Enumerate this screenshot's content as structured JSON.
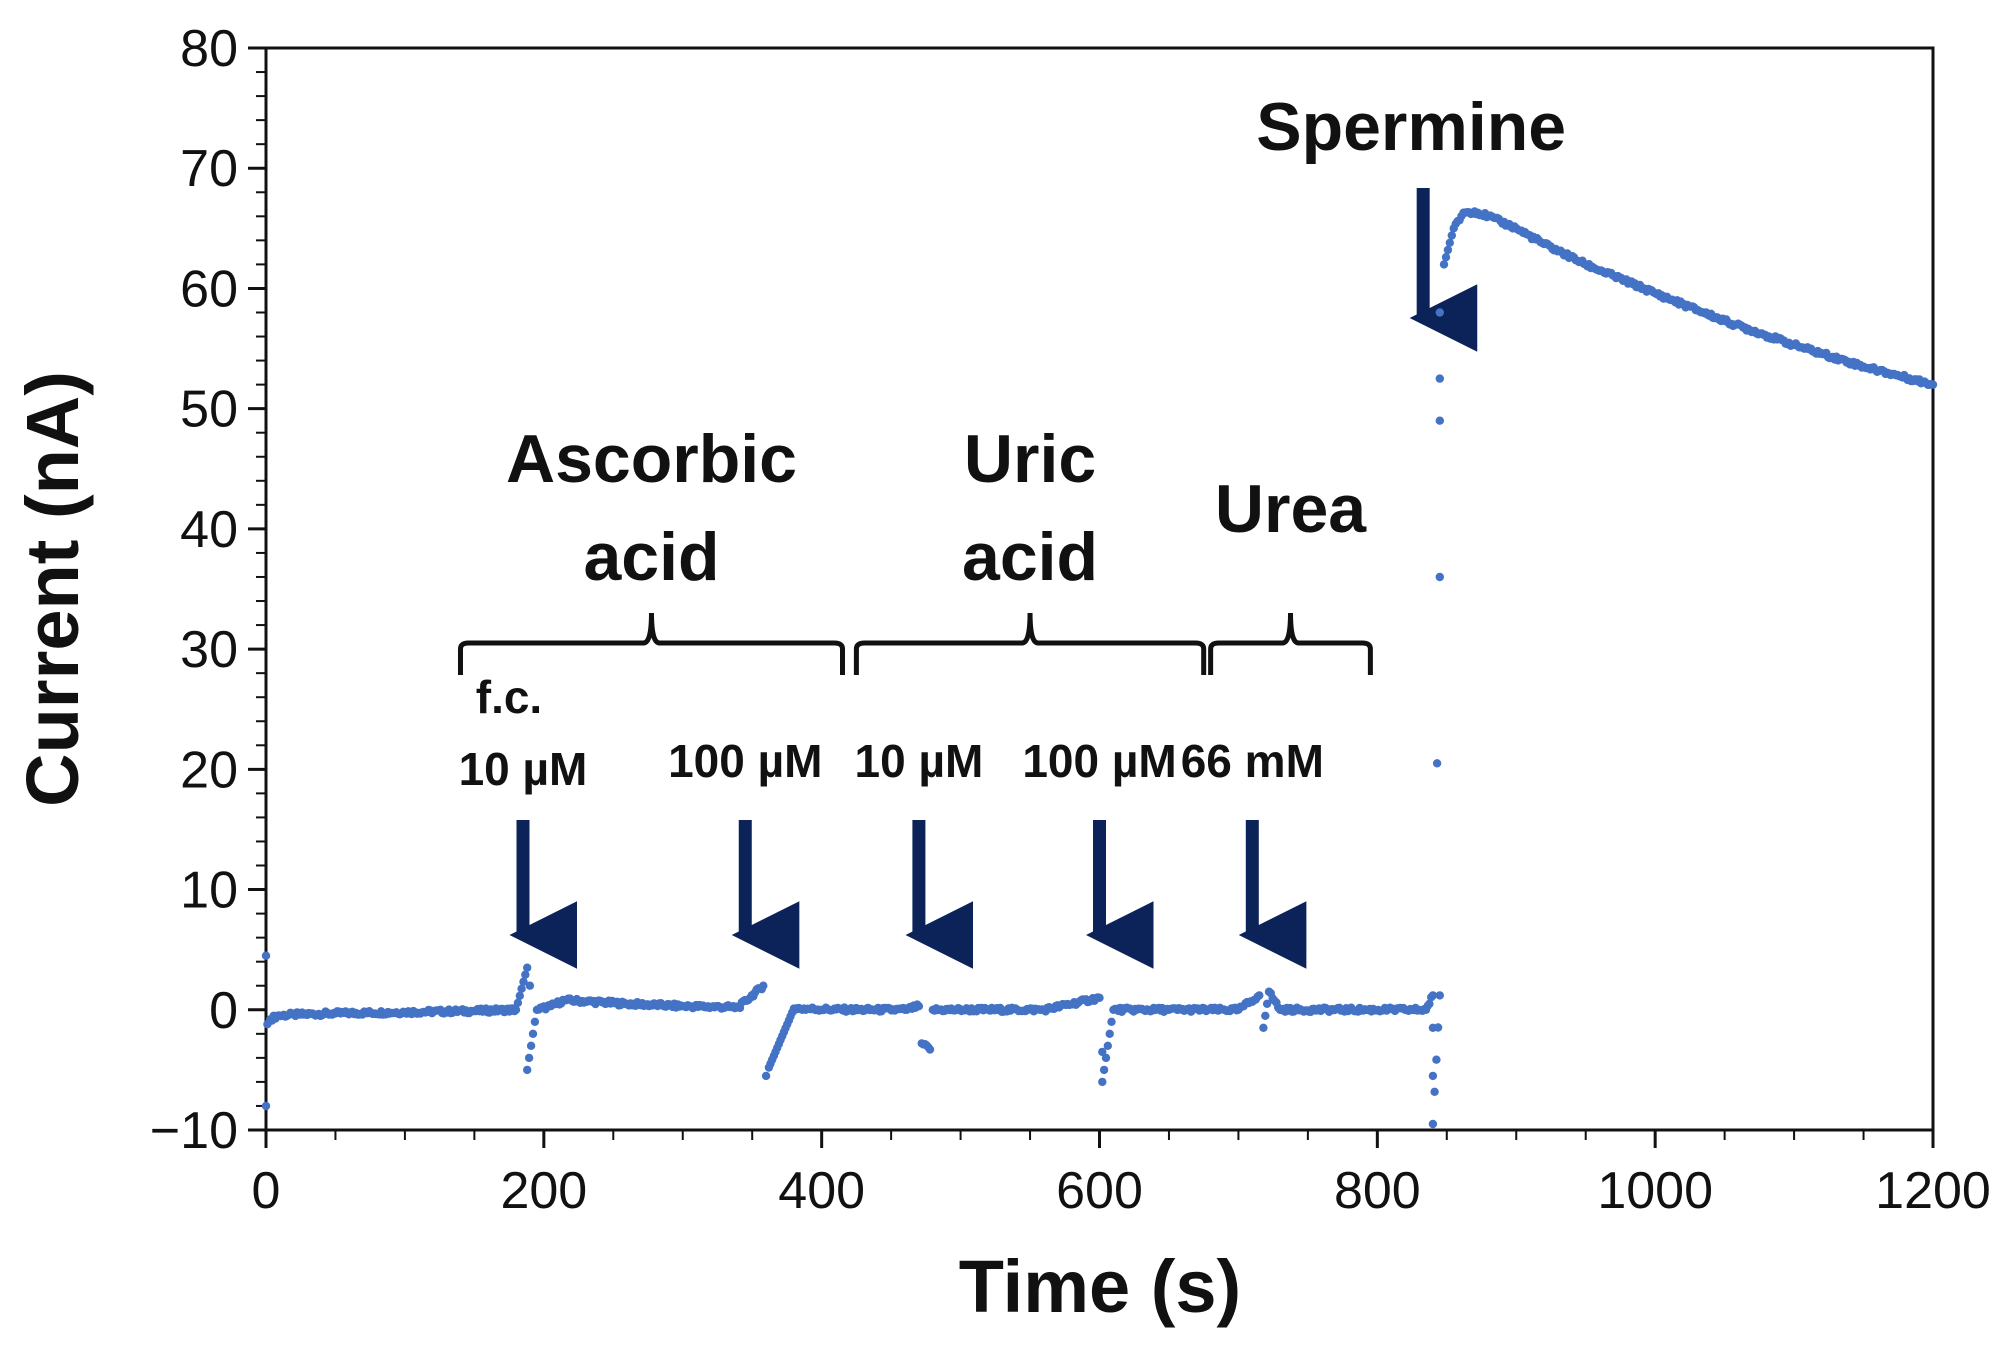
{
  "chart_data": {
    "type": "scatter",
    "xlabel": "Time (s)",
    "ylabel": "Current (nA)",
    "xlim": [
      0,
      1200
    ],
    "ylim": [
      -10,
      80
    ],
    "xticks": [
      0,
      200,
      400,
      600,
      800,
      1000,
      1200
    ],
    "yticks": [
      -10,
      0,
      10,
      20,
      30,
      40,
      50,
      60,
      70,
      80
    ],
    "xtick_labels": [
      "0",
      "200",
      "400",
      "600",
      "800",
      "1000",
      "1200"
    ],
    "ytick_labels": [
      "−10",
      "0",
      "10",
      "20",
      "30",
      "40",
      "50",
      "60",
      "70",
      "80"
    ],
    "grid": false,
    "legend": "none",
    "marker_color": "#4472C4",
    "arrow_color": "#0B2358",
    "series": [
      {
        "points": [
          [
            0,
            4.5
          ],
          [
            0,
            -8
          ],
          [
            1,
            -1.2
          ],
          [
            3,
            -0.8
          ],
          [
            8,
            -0.5
          ],
          [
            20,
            -0.4
          ],
          [
            50,
            -0.3
          ],
          [
            100,
            -0.2
          ],
          [
            150,
            -0.1
          ],
          [
            180,
            0
          ],
          [
            188,
            3.5
          ],
          [
            190,
            2
          ],
          [
            188,
            -5
          ],
          [
            195,
            0
          ],
          [
            205,
            0.3
          ],
          [
            215,
            0.8
          ],
          [
            230,
            0.7
          ],
          [
            260,
            0.5
          ],
          [
            300,
            0.3
          ],
          [
            340,
            0.2
          ],
          [
            358,
            2
          ],
          [
            360,
            -5.5
          ],
          [
            362,
            -4.8
          ],
          [
            380,
            0.1
          ],
          [
            420,
            0
          ],
          [
            460,
            0
          ],
          [
            470,
            0.3
          ],
          [
            472,
            -2.8
          ],
          [
            478,
            -3.3
          ],
          [
            480,
            0
          ],
          [
            520,
            0
          ],
          [
            560,
            0
          ],
          [
            600,
            1
          ],
          [
            602,
            -3.5
          ],
          [
            602,
            -6
          ],
          [
            610,
            0
          ],
          [
            650,
            0
          ],
          [
            700,
            0
          ],
          [
            715,
            1.2
          ],
          [
            718,
            -1.5
          ],
          [
            722,
            1.5
          ],
          [
            730,
            0
          ],
          [
            780,
            0
          ],
          [
            820,
            0
          ],
          [
            835,
            0
          ],
          [
            840,
            1.2
          ],
          [
            840,
            -1.5
          ],
          [
            840,
            -5.5
          ],
          [
            840,
            -9.5
          ],
          [
            845,
            1.2
          ],
          [
            843,
            20.5
          ],
          [
            845,
            36
          ],
          [
            845,
            49
          ],
          [
            845,
            52.5
          ],
          [
            845,
            58
          ],
          [
            848,
            62
          ],
          [
            855,
            65
          ],
          [
            862,
            66.3
          ],
          [
            870,
            66.4
          ],
          [
            880,
            66
          ],
          [
            900,
            65
          ],
          [
            920,
            63.7
          ],
          [
            950,
            62
          ],
          [
            1000,
            59.6
          ],
          [
            1050,
            57.3
          ],
          [
            1100,
            55.3
          ],
          [
            1150,
            53.5
          ],
          [
            1200,
            52
          ]
        ]
      }
    ],
    "annotations": {
      "groups": [
        {
          "lines": [
            "Ascorbic",
            "acid"
          ],
          "range": [
            140,
            415
          ]
        },
        {
          "lines": [
            "Uric",
            "acid"
          ],
          "range": [
            425,
            675
          ]
        },
        {
          "lines": [
            "Urea"
          ],
          "range": [
            680,
            795
          ]
        }
      ],
      "arrows": [
        {
          "x": 185,
          "lines": [
            "f.c.",
            "10 µM"
          ]
        },
        {
          "x": 345,
          "lines": [
            "100 µM"
          ]
        },
        {
          "x": 470,
          "lines": [
            "10 µM"
          ]
        },
        {
          "x": 600,
          "lines": [
            "100 µM"
          ]
        },
        {
          "x": 710,
          "lines": [
            "66 mM"
          ]
        }
      ],
      "spermine": {
        "x": 833,
        "label": "Spermine"
      }
    }
  }
}
